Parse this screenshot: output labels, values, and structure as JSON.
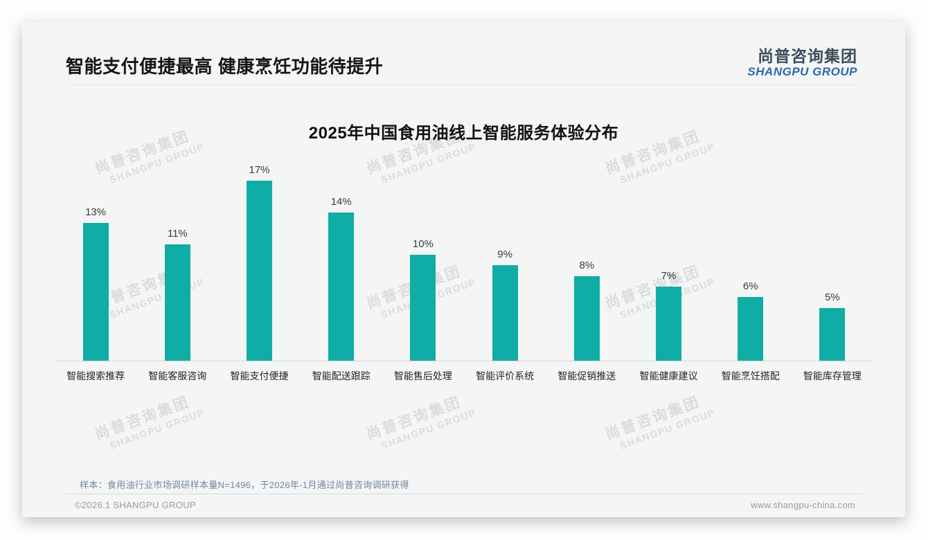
{
  "page": {
    "title": "智能支付便捷最高 健康烹饪功能待提升",
    "logo": {
      "cn": "尚普咨询集团",
      "en": "SHANGPU GROUP"
    },
    "footnote": "样本：食用油行业市场调研样本量N=1496，于2026年-1月通过尚普咨询调研获得",
    "copyright": "©2026.1 SHANGPU GROUP",
    "website": "www.shangpu-china.com",
    "watermark": {
      "cn": "尚普咨询集团",
      "en": "SHANGPU GROUP"
    }
  },
  "colors": {
    "bar": "#0fada6",
    "logo_cn": "#3d4b5f",
    "logo_en": "#2a69ad",
    "footnote": "#74879e",
    "card_background": "#f4f5f5"
  },
  "chart_data": {
    "type": "bar",
    "title": "2025年中国食用油线上智能服务体验分布",
    "categories": [
      "智能搜索推荐",
      "智能客服咨询",
      "智能支付便捷",
      "智能配送跟踪",
      "智能售后处理",
      "智能评价系统",
      "智能促销推送",
      "智能健康建议",
      "智能烹饪搭配",
      "智能库存管理"
    ],
    "values": [
      13,
      11,
      17,
      14,
      10,
      9,
      8,
      7,
      6,
      5
    ],
    "data_labels": [
      "13%",
      "11%",
      "17%",
      "14%",
      "10%",
      "9%",
      "8%",
      "7%",
      "6%",
      "5%"
    ],
    "unit": "%",
    "ylim": [
      0,
      18
    ],
    "grid": false,
    "legend": false,
    "bar_color": "#0fada6"
  }
}
